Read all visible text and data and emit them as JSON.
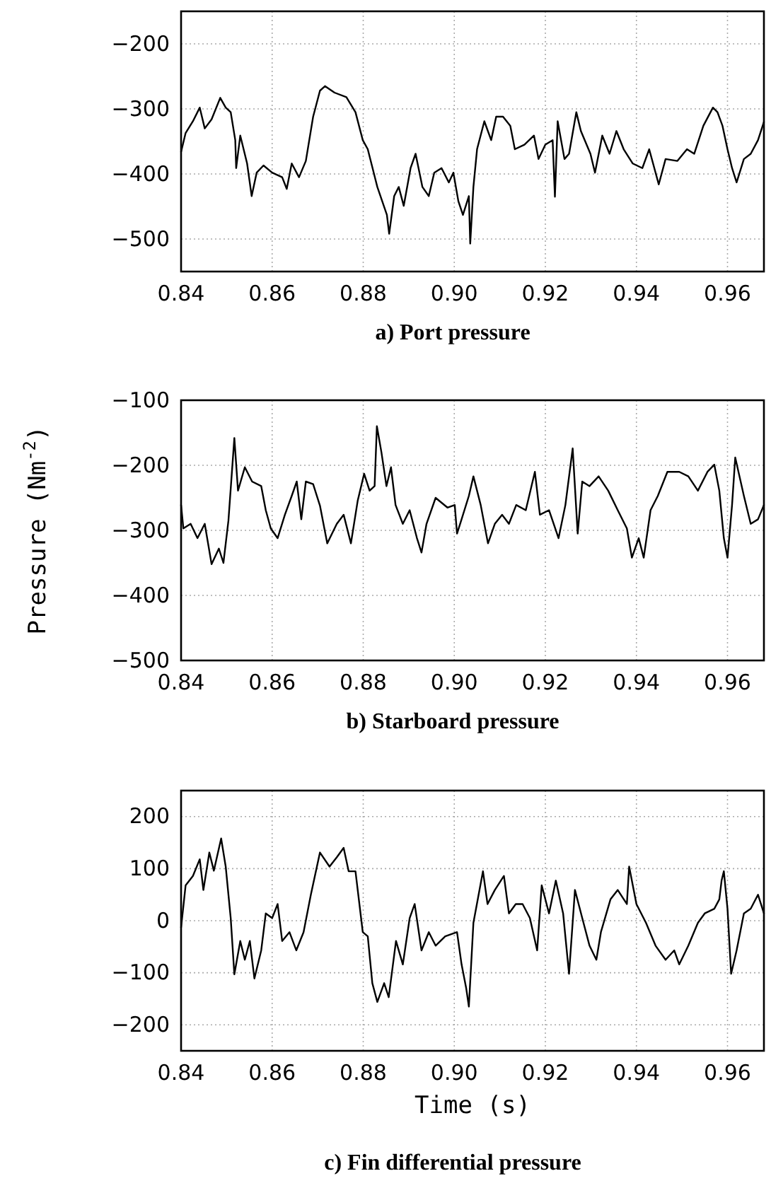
{
  "chart_data": [
    {
      "type": "line",
      "title": "a) Port pressure",
      "xlim": [
        0.84,
        0.968
      ],
      "xticks": [
        {
          "value": 0.84,
          "label": "0.84"
        },
        {
          "value": 0.86,
          "label": "0.86"
        },
        {
          "value": 0.88,
          "label": "0.88"
        },
        {
          "value": 0.9,
          "label": "0.90"
        },
        {
          "value": 0.92,
          "label": "0.92"
        },
        {
          "value": 0.94,
          "label": "0.94"
        },
        {
          "value": 0.96,
          "label": "0.96"
        }
      ],
      "ylim": [
        -550,
        -150
      ],
      "yticks": [
        -500,
        -400,
        -300,
        -200
      ],
      "grid": true,
      "marker": "none",
      "line_style": "solid",
      "x": [
        0.84,
        0.841,
        0.8426,
        0.8441,
        0.8452,
        0.8467,
        0.8486,
        0.8498,
        0.8509,
        0.8519,
        0.8521,
        0.853,
        0.8545,
        0.8555,
        0.8566,
        0.8581,
        0.86,
        0.8622,
        0.8632,
        0.8643,
        0.8659,
        0.8674,
        0.869,
        0.8705,
        0.8716,
        0.8737,
        0.8763,
        0.8783,
        0.8799,
        0.881,
        0.8831,
        0.8852,
        0.8857,
        0.8868,
        0.8878,
        0.8889,
        0.8904,
        0.8915,
        0.893,
        0.8944,
        0.8956,
        0.8972,
        0.8988,
        0.8998,
        0.9009,
        0.9019,
        0.9032,
        0.9035,
        0.9042,
        0.905,
        0.9066,
        0.9081,
        0.9092,
        0.9107,
        0.9123,
        0.9133,
        0.9154,
        0.9175,
        0.9185,
        0.92,
        0.9216,
        0.9221,
        0.9227,
        0.9242,
        0.9252,
        0.9268,
        0.9278,
        0.9299,
        0.9309,
        0.9325,
        0.9341,
        0.9356,
        0.9372,
        0.9392,
        0.9413,
        0.9428,
        0.9449,
        0.9464,
        0.949,
        0.9511,
        0.9527,
        0.9547,
        0.9568,
        0.9578,
        0.9589,
        0.96,
        0.961,
        0.962,
        0.9636,
        0.9651,
        0.9667,
        0.968
      ],
      "series": [
        {
          "color": "#000000",
          "values": [
            -366,
            -337,
            -319,
            -298,
            -330,
            -316,
            -283,
            -298,
            -305,
            -348,
            -391,
            -341,
            -384,
            -434,
            -398,
            -387,
            -398,
            -405,
            -423,
            -384,
            -405,
            -380,
            -312,
            -272,
            -265,
            -275,
            -282,
            -305,
            -348,
            -362,
            -420,
            -463,
            -492,
            -434,
            -420,
            -449,
            -391,
            -369,
            -420,
            -434,
            -398,
            -391,
            -413,
            -398,
            -442,
            -463,
            -434,
            -507,
            -420,
            -362,
            -319,
            -348,
            -312,
            -312,
            -326,
            -362,
            -355,
            -341,
            -377,
            -355,
            -348,
            -435,
            -319,
            -377,
            -369,
            -305,
            -334,
            -369,
            -398,
            -341,
            -369,
            -334,
            -362,
            -384,
            -391,
            -362,
            -416,
            -377,
            -380,
            -362,
            -369,
            -326,
            -298,
            -305,
            -326,
            -362,
            -391,
            -413,
            -377,
            -369,
            -348,
            -320
          ]
        }
      ]
    },
    {
      "type": "line",
      "title": "b) Starboard pressure",
      "ylabel": "Pressure (Nm$^{-2}$)",
      "xlim": [
        0.84,
        0.968
      ],
      "xticks": [
        {
          "value": 0.84,
          "label": "0.84"
        },
        {
          "value": 0.86,
          "label": "0.86"
        },
        {
          "value": 0.88,
          "label": "0.88"
        },
        {
          "value": 0.9,
          "label": "0.90"
        },
        {
          "value": 0.92,
          "label": "0.92"
        },
        {
          "value": 0.94,
          "label": "0.94"
        },
        {
          "value": 0.96,
          "label": "0.96"
        }
      ],
      "ylim": [
        -500,
        -100
      ],
      "yticks": [
        -500,
        -400,
        -300,
        -200,
        -100
      ],
      "grid": true,
      "marker": "none",
      "line_style": "solid",
      "x": [
        0.84,
        0.8405,
        0.8421,
        0.8436,
        0.8452,
        0.8467,
        0.8483,
        0.8493,
        0.8504,
        0.8517,
        0.8525,
        0.854,
        0.8556,
        0.8576,
        0.8586,
        0.8597,
        0.8612,
        0.8628,
        0.8643,
        0.8654,
        0.8664,
        0.8674,
        0.869,
        0.8705,
        0.8721,
        0.8742,
        0.8757,
        0.8773,
        0.8788,
        0.8802,
        0.8814,
        0.8825,
        0.883,
        0.884,
        0.8851,
        0.8861,
        0.8871,
        0.8887,
        0.8902,
        0.8918,
        0.8928,
        0.8939,
        0.8959,
        0.8985,
        0.9001,
        0.9006,
        0.9016,
        0.9032,
        0.9042,
        0.9058,
        0.9074,
        0.9089,
        0.9105,
        0.912,
        0.9136,
        0.9157,
        0.9177,
        0.9188,
        0.9208,
        0.9229,
        0.9244,
        0.926,
        0.9271,
        0.9281,
        0.9297,
        0.9317,
        0.9338,
        0.9359,
        0.9379,
        0.939,
        0.9405,
        0.9416,
        0.9431,
        0.9447,
        0.9468,
        0.9494,
        0.9514,
        0.9535,
        0.9556,
        0.9571,
        0.9582,
        0.9592,
        0.96,
        0.961,
        0.9617,
        0.9636,
        0.9651,
        0.9667,
        0.968
      ],
      "series": [
        {
          "color": "#000000",
          "values": [
            -261,
            -297,
            -290,
            -312,
            -290,
            -352,
            -328,
            -350,
            -285,
            -158,
            -239,
            -203,
            -225,
            -232,
            -269,
            -297,
            -312,
            -276,
            -247,
            -225,
            -283,
            -225,
            -229,
            -262,
            -320,
            -290,
            -276,
            -320,
            -254,
            -213,
            -239,
            -232,
            -140,
            -180,
            -232,
            -203,
            -261,
            -290,
            -269,
            -312,
            -334,
            -290,
            -250,
            -265,
            -261,
            -305,
            -283,
            -247,
            -217,
            -261,
            -320,
            -290,
            -276,
            -290,
            -261,
            -269,
            -210,
            -276,
            -269,
            -312,
            -261,
            -174,
            -305,
            -225,
            -232,
            -217,
            -239,
            -269,
            -297,
            -342,
            -312,
            -342,
            -269,
            -247,
            -210,
            -210,
            -217,
            -239,
            -210,
            -199,
            -239,
            -312,
            -342,
            -261,
            -188,
            -247,
            -290,
            -283,
            -261
          ]
        }
      ]
    },
    {
      "type": "line",
      "title": "c) Fin differential pressure",
      "xlabel": "Time (s)",
      "xlim": [
        0.84,
        0.968
      ],
      "xticks": [
        {
          "value": 0.84,
          "label": "0.84"
        },
        {
          "value": 0.86,
          "label": "0.86"
        },
        {
          "value": 0.88,
          "label": "0.88"
        },
        {
          "value": 0.9,
          "label": "0.90"
        },
        {
          "value": 0.92,
          "label": "0.92"
        },
        {
          "value": 0.94,
          "label": "0.94"
        },
        {
          "value": 0.96,
          "label": "0.96"
        }
      ],
      "ylim": [
        -250,
        250
      ],
      "yticks": [
        -200,
        -100,
        0,
        100,
        200
      ],
      "grid": true,
      "marker": "none",
      "line_style": "solid",
      "x": [
        0.84,
        0.841,
        0.8426,
        0.8441,
        0.8449,
        0.8462,
        0.8472,
        0.8488,
        0.8498,
        0.8509,
        0.8517,
        0.853,
        0.854,
        0.8551,
        0.8561,
        0.8576,
        0.8586,
        0.86,
        0.8612,
        0.8622,
        0.8638,
        0.8653,
        0.8669,
        0.8685,
        0.8705,
        0.8726,
        0.8742,
        0.8757,
        0.8768,
        0.8783,
        0.8799,
        0.881,
        0.882,
        0.8831,
        0.8846,
        0.8856,
        0.8872,
        0.8887,
        0.8902,
        0.8913,
        0.8928,
        0.8944,
        0.8959,
        0.898,
        0.9006,
        0.9016,
        0.9026,
        0.9032,
        0.9042,
        0.9063,
        0.9073,
        0.9089,
        0.9109,
        0.912,
        0.9135,
        0.915,
        0.9166,
        0.9182,
        0.9192,
        0.9208,
        0.9223,
        0.9239,
        0.9252,
        0.9265,
        0.9281,
        0.9297,
        0.9312,
        0.9322,
        0.9343,
        0.9359,
        0.9379,
        0.9384,
        0.94,
        0.9421,
        0.9442,
        0.9464,
        0.9483,
        0.9494,
        0.9514,
        0.9535,
        0.955,
        0.9571,
        0.9582,
        0.9587,
        0.9592,
        0.96,
        0.9608,
        0.962,
        0.9636,
        0.9651,
        0.9667,
        0.968
      ],
      "series": [
        {
          "color": "#000000",
          "values": [
            -13,
            68,
            86,
            118,
            59,
            131,
            96,
            158,
            104,
            5,
            -103,
            -39,
            -75,
            -39,
            -111,
            -57,
            14,
            5,
            32,
            -39,
            -22,
            -57,
            -22,
            50,
            131,
            104,
            122,
            140,
            95,
            95,
            -22,
            -30,
            -120,
            -156,
            -120,
            -147,
            -39,
            -84,
            5,
            32,
            -57,
            -22,
            -48,
            -30,
            -22,
            -84,
            -129,
            -165,
            -4,
            95,
            32,
            59,
            86,
            14,
            32,
            32,
            5,
            -57,
            68,
            14,
            77,
            14,
            -102,
            59,
            5,
            -48,
            -75,
            -22,
            41,
            59,
            32,
            104,
            32,
            -4,
            -48,
            -75,
            -57,
            -84,
            -48,
            -4,
            14,
            23,
            41,
            77,
            95,
            23,
            -102,
            -57,
            14,
            23,
            50,
            14
          ]
        }
      ]
    }
  ]
}
